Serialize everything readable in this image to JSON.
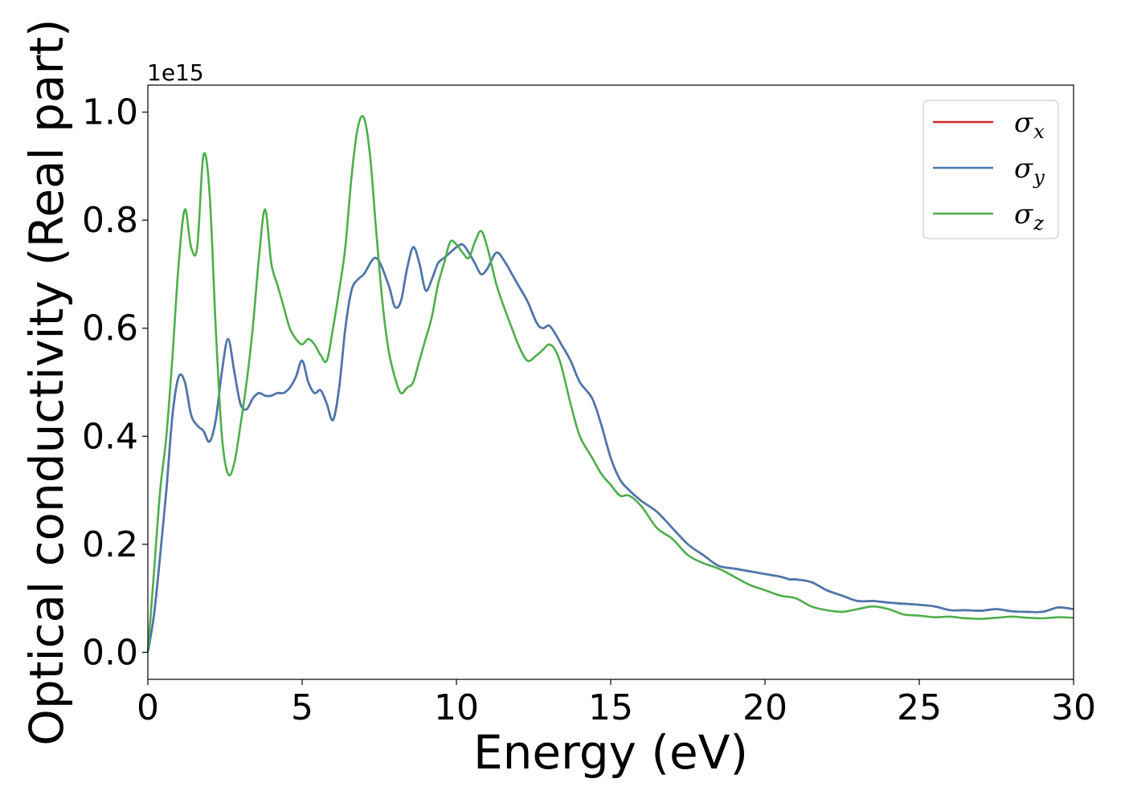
{
  "chart_data": {
    "type": "line",
    "xlabel": "Energy (eV)",
    "ylabel": "Optical conductivity (Real part)",
    "y_offset_text": "1e15",
    "xlim": [
      0,
      30
    ],
    "ylim": [
      -0.05,
      1.05
    ],
    "x_ticks": [
      0,
      5,
      10,
      15,
      20,
      25,
      30
    ],
    "x_tick_labels": [
      "0",
      "5",
      "10",
      "15",
      "20",
      "25",
      "30"
    ],
    "y_ticks": [
      0.0,
      0.2,
      0.4,
      0.6,
      0.8,
      1.0
    ],
    "y_tick_labels": [
      "0.0",
      "0.2",
      "0.4",
      "0.6",
      "0.8",
      "1.0"
    ],
    "grid": false,
    "legend_position": "top-right",
    "series": [
      {
        "name": "σ_x",
        "legend_base": "σ",
        "legend_sub": "x",
        "color": "#d62728",
        "x": [
          0,
          0.2,
          0.4,
          0.6,
          0.8,
          1.0,
          1.2,
          1.4,
          1.6,
          1.8,
          2.0,
          2.2,
          2.4,
          2.6,
          2.8,
          3.0,
          3.2,
          3.4,
          3.6,
          3.8,
          4.0,
          4.2,
          4.4,
          4.6,
          4.8,
          5.0,
          5.2,
          5.4,
          5.6,
          5.8,
          6.0,
          6.2,
          6.4,
          6.6,
          6.8,
          7.0,
          7.4,
          7.8,
          8.0,
          8.2,
          8.4,
          8.6,
          8.8,
          9.0,
          9.2,
          9.4,
          9.6,
          9.8,
          10.0,
          10.2,
          10.4,
          10.6,
          10.8,
          11.0,
          11.3,
          11.6,
          11.8,
          12.0,
          12.3,
          12.6,
          12.8,
          13.0,
          13.2,
          13.4,
          13.7,
          14.0,
          14.4,
          14.7,
          15.0,
          15.3,
          15.6,
          16.0,
          16.5,
          17.0,
          17.5,
          18.0,
          18.5,
          19.0,
          19.5,
          20.0,
          20.5,
          20.8,
          21.0,
          21.5,
          22.0,
          22.5,
          23.0,
          23.5,
          24.0,
          24.5,
          25.0,
          25.5,
          26.0,
          26.5,
          27.0,
          27.5,
          28.0,
          28.5,
          29.0,
          29.5,
          30.0
        ],
        "y": [
          0,
          0.07,
          0.18,
          0.3,
          0.44,
          0.51,
          0.5,
          0.44,
          0.42,
          0.41,
          0.39,
          0.43,
          0.52,
          0.58,
          0.52,
          0.46,
          0.45,
          0.47,
          0.48,
          0.475,
          0.475,
          0.48,
          0.48,
          0.49,
          0.51,
          0.54,
          0.5,
          0.48,
          0.485,
          0.46,
          0.43,
          0.49,
          0.6,
          0.67,
          0.69,
          0.7,
          0.73,
          0.68,
          0.64,
          0.65,
          0.71,
          0.75,
          0.72,
          0.67,
          0.69,
          0.72,
          0.73,
          0.74,
          0.75,
          0.755,
          0.74,
          0.72,
          0.7,
          0.71,
          0.74,
          0.72,
          0.7,
          0.68,
          0.65,
          0.61,
          0.6,
          0.605,
          0.59,
          0.57,
          0.54,
          0.5,
          0.47,
          0.42,
          0.36,
          0.32,
          0.3,
          0.28,
          0.26,
          0.23,
          0.2,
          0.18,
          0.16,
          0.155,
          0.15,
          0.145,
          0.14,
          0.135,
          0.135,
          0.13,
          0.115,
          0.105,
          0.095,
          0.095,
          0.092,
          0.09,
          0.088,
          0.085,
          0.078,
          0.078,
          0.077,
          0.08,
          0.076,
          0.075,
          0.075,
          0.083,
          0.08
        ]
      },
      {
        "name": "σ_y",
        "legend_base": "σ",
        "legend_sub": "y",
        "color": "#4878b0",
        "x": [
          0,
          0.2,
          0.4,
          0.6,
          0.8,
          1.0,
          1.2,
          1.4,
          1.6,
          1.8,
          2.0,
          2.2,
          2.4,
          2.6,
          2.8,
          3.0,
          3.2,
          3.4,
          3.6,
          3.8,
          4.0,
          4.2,
          4.4,
          4.6,
          4.8,
          5.0,
          5.2,
          5.4,
          5.6,
          5.8,
          6.0,
          6.2,
          6.4,
          6.6,
          6.8,
          7.0,
          7.4,
          7.8,
          8.0,
          8.2,
          8.4,
          8.6,
          8.8,
          9.0,
          9.2,
          9.4,
          9.6,
          9.8,
          10.0,
          10.2,
          10.4,
          10.6,
          10.8,
          11.0,
          11.3,
          11.6,
          11.8,
          12.0,
          12.3,
          12.6,
          12.8,
          13.0,
          13.2,
          13.4,
          13.7,
          14.0,
          14.4,
          14.7,
          15.0,
          15.3,
          15.6,
          16.0,
          16.5,
          17.0,
          17.5,
          18.0,
          18.5,
          19.0,
          19.5,
          20.0,
          20.5,
          20.8,
          21.0,
          21.5,
          22.0,
          22.5,
          23.0,
          23.5,
          24.0,
          24.5,
          25.0,
          25.5,
          26.0,
          26.5,
          27.0,
          27.5,
          28.0,
          28.5,
          29.0,
          29.5,
          30.0
        ],
        "y": [
          0,
          0.07,
          0.18,
          0.3,
          0.44,
          0.51,
          0.5,
          0.44,
          0.42,
          0.41,
          0.39,
          0.43,
          0.52,
          0.58,
          0.52,
          0.46,
          0.45,
          0.47,
          0.48,
          0.475,
          0.475,
          0.48,
          0.48,
          0.49,
          0.51,
          0.54,
          0.5,
          0.48,
          0.485,
          0.46,
          0.43,
          0.49,
          0.6,
          0.67,
          0.69,
          0.7,
          0.73,
          0.68,
          0.64,
          0.65,
          0.71,
          0.75,
          0.72,
          0.67,
          0.69,
          0.72,
          0.73,
          0.74,
          0.75,
          0.755,
          0.74,
          0.72,
          0.7,
          0.71,
          0.74,
          0.72,
          0.7,
          0.68,
          0.65,
          0.61,
          0.6,
          0.605,
          0.59,
          0.57,
          0.54,
          0.5,
          0.47,
          0.42,
          0.36,
          0.32,
          0.3,
          0.28,
          0.26,
          0.23,
          0.2,
          0.18,
          0.16,
          0.155,
          0.15,
          0.145,
          0.14,
          0.135,
          0.135,
          0.13,
          0.115,
          0.105,
          0.095,
          0.095,
          0.092,
          0.09,
          0.088,
          0.085,
          0.078,
          0.078,
          0.077,
          0.08,
          0.076,
          0.075,
          0.075,
          0.083,
          0.08
        ]
      },
      {
        "name": "σ_z",
        "legend_base": "σ",
        "legend_sub": "z",
        "color": "#4daf4a",
        "x": [
          0,
          0.2,
          0.4,
          0.6,
          0.8,
          1.0,
          1.2,
          1.4,
          1.6,
          1.8,
          2.0,
          2.2,
          2.4,
          2.6,
          2.8,
          3.0,
          3.2,
          3.4,
          3.6,
          3.8,
          4.0,
          4.2,
          4.4,
          4.6,
          4.8,
          5.0,
          5.2,
          5.4,
          5.6,
          5.8,
          6.0,
          6.2,
          6.4,
          6.6,
          6.8,
          7.0,
          7.2,
          7.4,
          7.6,
          7.8,
          8.0,
          8.2,
          8.4,
          8.6,
          8.8,
          9.0,
          9.2,
          9.4,
          9.6,
          9.8,
          10.0,
          10.2,
          10.4,
          10.6,
          10.8,
          11.0,
          11.3,
          11.6,
          11.8,
          12.0,
          12.3,
          12.6,
          12.8,
          13.0,
          13.2,
          13.4,
          13.7,
          14.0,
          14.4,
          14.7,
          15.0,
          15.3,
          15.6,
          16.0,
          16.5,
          17.0,
          17.5,
          18.0,
          18.5,
          19.0,
          19.5,
          20.0,
          20.5,
          21.0,
          21.5,
          22.0,
          22.5,
          23.0,
          23.5,
          24.0,
          24.5,
          25.0,
          25.5,
          26.0,
          26.5,
          27.0,
          27.5,
          28.0,
          28.5,
          29.0,
          29.5,
          30.0
        ],
        "y": [
          0,
          0.15,
          0.3,
          0.4,
          0.55,
          0.72,
          0.82,
          0.75,
          0.75,
          0.92,
          0.85,
          0.6,
          0.4,
          0.33,
          0.35,
          0.42,
          0.5,
          0.6,
          0.73,
          0.82,
          0.72,
          0.68,
          0.64,
          0.6,
          0.58,
          0.57,
          0.58,
          0.57,
          0.55,
          0.54,
          0.6,
          0.67,
          0.75,
          0.88,
          0.97,
          0.99,
          0.92,
          0.78,
          0.65,
          0.56,
          0.51,
          0.48,
          0.49,
          0.5,
          0.54,
          0.58,
          0.62,
          0.68,
          0.72,
          0.76,
          0.755,
          0.74,
          0.73,
          0.76,
          0.78,
          0.75,
          0.68,
          0.63,
          0.6,
          0.57,
          0.54,
          0.55,
          0.56,
          0.57,
          0.56,
          0.53,
          0.46,
          0.4,
          0.36,
          0.33,
          0.31,
          0.29,
          0.29,
          0.27,
          0.23,
          0.21,
          0.18,
          0.165,
          0.155,
          0.14,
          0.125,
          0.115,
          0.105,
          0.1,
          0.085,
          0.078,
          0.075,
          0.08,
          0.085,
          0.08,
          0.07,
          0.068,
          0.065,
          0.066,
          0.063,
          0.062,
          0.064,
          0.066,
          0.064,
          0.063,
          0.065,
          0.064
        ]
      }
    ]
  }
}
